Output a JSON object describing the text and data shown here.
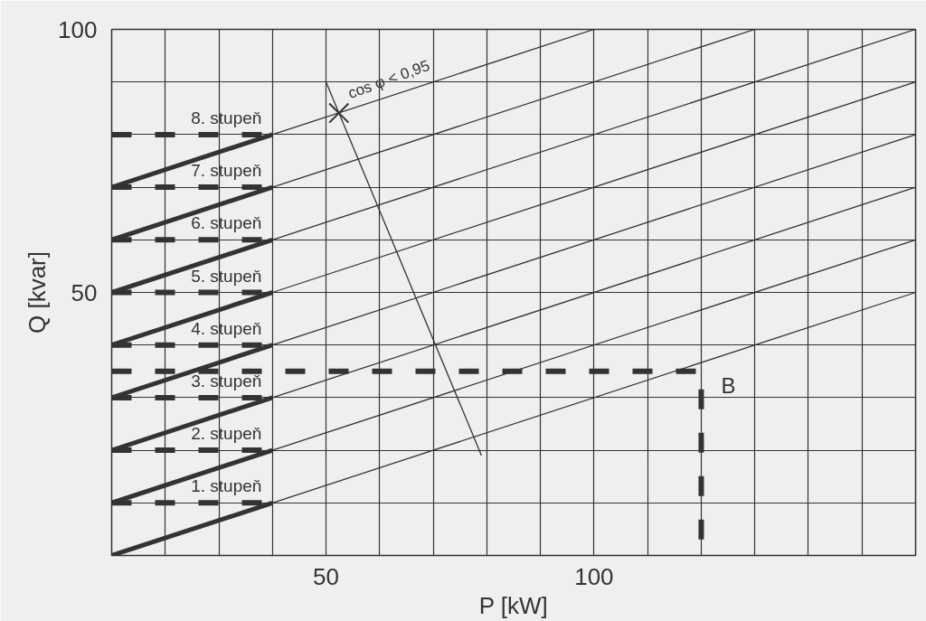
{
  "chart_data": {
    "type": "line",
    "xlabel": "P [kW]",
    "ylabel": "Q [kvar]",
    "xlim": [
      10,
      160
    ],
    "ylim": [
      0,
      100
    ],
    "xticks": [
      {
        "value": 10,
        "label": null
      },
      {
        "value": 20,
        "label": null
      },
      {
        "value": 30,
        "label": null
      },
      {
        "value": 40,
        "label": null
      },
      50,
      {
        "value": 60,
        "label": null
      },
      {
        "value": 70,
        "label": null
      },
      {
        "value": 80,
        "label": null
      },
      {
        "value": 90,
        "label": null
      },
      100,
      {
        "value": 110,
        "label": null
      },
      {
        "value": 120,
        "label": null
      },
      {
        "value": 130,
        "label": null
      },
      {
        "value": 140,
        "label": null
      },
      {
        "value": 150,
        "label": null
      },
      {
        "value": 160,
        "label": null
      }
    ],
    "yticks": [
      {
        "value": 0,
        "label": null
      },
      {
        "value": 10,
        "label": null
      },
      {
        "value": 20,
        "label": null
      },
      {
        "value": 30,
        "label": null
      },
      {
        "value": 40,
        "label": null
      },
      50,
      {
        "value": 60,
        "label": null
      },
      {
        "value": 70,
        "label": null
      },
      {
        "value": 80,
        "label": null
      },
      {
        "value": 90,
        "label": null
      },
      100
    ],
    "grid": true,
    "series": [
      {
        "name": "1. stupeň",
        "color": "#333333",
        "x": [
          10,
          40
        ],
        "values": [
          0,
          10
        ]
      },
      {
        "name": "2. stupeň",
        "color": "#333333",
        "x": [
          10,
          40
        ],
        "values": [
          10,
          20
        ]
      },
      {
        "name": "3. stupeň",
        "color": "#333333",
        "x": [
          10,
          40
        ],
        "values": [
          20,
          30
        ]
      },
      {
        "name": "4. stupeň",
        "color": "#333333",
        "x": [
          10,
          40
        ],
        "values": [
          30,
          40
        ]
      },
      {
        "name": "5. stupeň",
        "color": "#333333",
        "x": [
          10,
          40
        ],
        "values": [
          40,
          50
        ]
      },
      {
        "name": "6. stupeň",
        "color": "#333333",
        "x": [
          10,
          40
        ],
        "values": [
          50,
          60
        ]
      },
      {
        "name": "7. stupeň",
        "color": "#333333",
        "x": [
          10,
          40
        ],
        "values": [
          60,
          70
        ]
      },
      {
        "name": "8. stupeň",
        "color": "#333333",
        "x": [
          10,
          40
        ],
        "values": [
          70,
          80
        ]
      },
      {
        "color": "#333333",
        "x": [
          40,
          160
        ],
        "values": [
          10,
          50
        ]
      },
      {
        "color": "#333333",
        "x": [
          40,
          160
        ],
        "values": [
          20,
          60
        ]
      },
      {
        "color": "#333333",
        "x": [
          40,
          160
        ],
        "values": [
          30,
          70
        ]
      },
      {
        "color": "#333333",
        "x": [
          40,
          160
        ],
        "values": [
          40,
          80
        ]
      },
      {
        "color": "#333333",
        "x": [
          40,
          160
        ],
        "values": [
          50,
          90
        ]
      },
      {
        "color": "#333333",
        "x": [
          40,
          160
        ],
        "values": [
          60,
          100
        ]
      },
      {
        "color": "#333333",
        "x": [
          40,
          130
        ],
        "values": [
          70,
          100
        ]
      },
      {
        "color": "#333333",
        "x": [
          40,
          100
        ],
        "values": [
          80,
          100
        ]
      },
      {
        "color": "#333333",
        "line_style": "dashed",
        "x": [
          10,
          40
        ],
        "values": [
          10,
          10
        ]
      },
      {
        "color": "#333333",
        "line_style": "dashed",
        "x": [
          10,
          40
        ],
        "values": [
          20,
          20
        ]
      },
      {
        "color": "#333333",
        "line_style": "dashed",
        "x": [
          10,
          40
        ],
        "values": [
          30,
          30
        ]
      },
      {
        "color": "#333333",
        "line_style": "dashed",
        "x": [
          10,
          40
        ],
        "values": [
          40,
          40
        ]
      },
      {
        "color": "#333333",
        "line_style": "dashed",
        "x": [
          10,
          40
        ],
        "values": [
          50,
          50
        ]
      },
      {
        "color": "#333333",
        "line_style": "dashed",
        "x": [
          10,
          40
        ],
        "values": [
          60,
          60
        ]
      },
      {
        "color": "#333333",
        "line_style": "dashed",
        "x": [
          10,
          40
        ],
        "values": [
          70,
          70
        ]
      },
      {
        "color": "#333333",
        "line_style": "dashed",
        "x": [
          10,
          40
        ],
        "values": [
          80,
          80
        ]
      },
      {
        "color": "#333333",
        "x": [
          50,
          79
        ],
        "values": [
          90,
          19
        ]
      },
      {
        "color": "#333333",
        "line_style": "dashed",
        "x": [
          10,
          120,
          120
        ],
        "values": [
          35,
          35,
          0
        ]
      },
      {
        "type": "scatter",
        "marker": "cross",
        "color": "#333333",
        "x": [
          52.4
        ],
        "values": [
          84.1
        ]
      }
    ],
    "annotations": [
      {
        "text": "B",
        "x": 120,
        "y": 35
      },
      {
        "text": "cos φ < 0,95",
        "x": 52.4,
        "y": 84.1
      }
    ]
  }
}
